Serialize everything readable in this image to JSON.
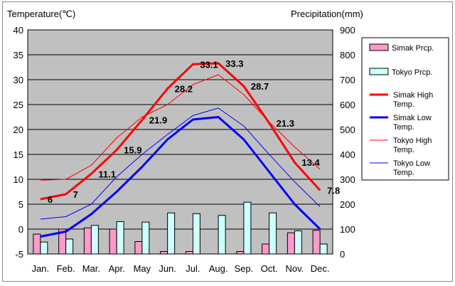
{
  "chart_data": {
    "type": "line+bar",
    "categories": [
      "Jan.",
      "Feb.",
      "Mar.",
      "Apr.",
      "May",
      "Jun.",
      "Jul.",
      "Aug.",
      "Sep.",
      "Oct.",
      "Nov.",
      "Dec."
    ],
    "y_left": {
      "label": "Temperature(℃)",
      "min": -5,
      "max": 40,
      "ticks": [
        -5,
        0,
        5,
        10,
        15,
        20,
        25,
        30,
        35,
        40
      ]
    },
    "y_right": {
      "label": "Precipitation(mm)",
      "min": 0,
      "max": 900,
      "ticks": [
        0,
        100,
        200,
        300,
        400,
        500,
        600,
        700,
        800,
        900
      ]
    },
    "grid": true,
    "legend_position": "right",
    "bar_series": [
      {
        "name": "Simak Prcp.",
        "color": "#ff99cc",
        "values": [
          80,
          100,
          105,
          100,
          50,
          10,
          10,
          0,
          10,
          40,
          85,
          95
        ]
      },
      {
        "name": "Tokyo Prcp.",
        "color": "#ccffff",
        "values": [
          48,
          60,
          115,
          130,
          128,
          165,
          162,
          155,
          208,
          165,
          93,
          40
        ]
      }
    ],
    "line_series": [
      {
        "name": "Simak High Temp.",
        "color": "#ff0000",
        "width": 3,
        "values": [
          6,
          7,
          11.1,
          15.9,
          21.9,
          28.2,
          33.1,
          33.3,
          28.7,
          21.3,
          13.4,
          7.8
        ],
        "labels": [
          "6",
          "7",
          "11.1",
          "15.9",
          "21.9",
          "28.2",
          "33.1",
          "33.3",
          "28.7",
          "21.3",
          "13.4",
          "7.8"
        ]
      },
      {
        "name": "Simak Low Temp.",
        "color": "#0000ff",
        "width": 3,
        "values": [
          -1.5,
          -0.5,
          3,
          7.5,
          12.5,
          18,
          22,
          22.5,
          18,
          11.5,
          5,
          0
        ]
      },
      {
        "name": "Tokyo High Temp.",
        "color": "#ff0000",
        "width": 1,
        "values": [
          9.8,
          10,
          12.8,
          18.3,
          22.5,
          25,
          29,
          31,
          27,
          21.5,
          16.5,
          12
        ]
      },
      {
        "name": "Tokyo Low Temp.",
        "color": "#0000ff",
        "width": 1,
        "values": [
          2,
          2.5,
          5,
          10.5,
          15,
          19,
          22.8,
          24.3,
          20.7,
          15,
          9.5,
          4.5
        ]
      }
    ]
  }
}
